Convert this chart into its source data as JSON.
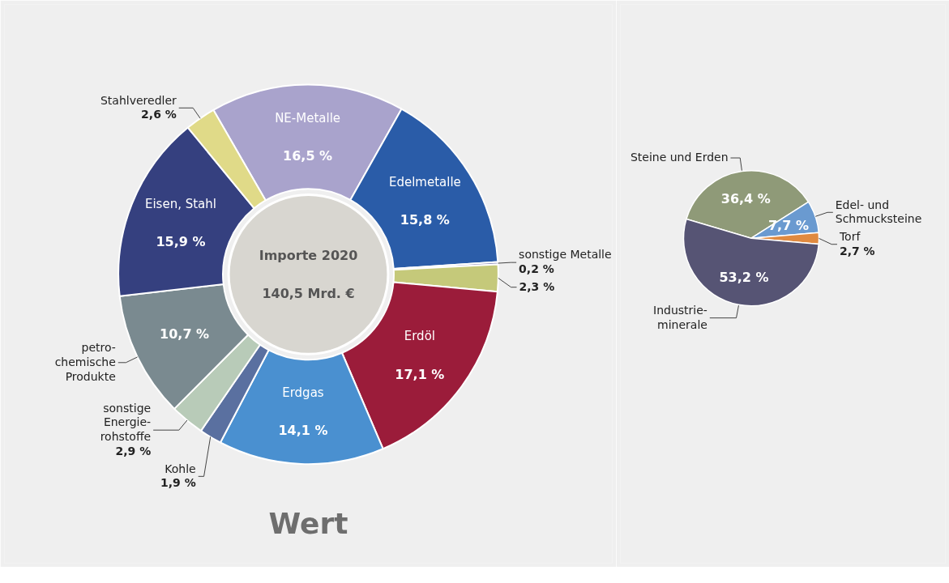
{
  "chart_data": [
    {
      "type": "donut",
      "title": "Wert",
      "annotations": [
        "Importe 2020",
        "140,5 Mrd. €"
      ],
      "categories": [
        "NE-Metalle",
        "Edelmetalle",
        "sonstige Metalle",
        null,
        "Erdöl",
        "Erdgas",
        "Kohle",
        "sonstige\nEnergie-\nrohstoffe",
        "petro-\nchemische\nProdukte",
        "Eisen, Stahl",
        "Stahlveredler"
      ],
      "values": [
        16.5,
        15.8,
        0.2,
        2.3,
        17.1,
        14.1,
        1.9,
        2.9,
        10.7,
        15.9,
        2.6
      ],
      "colors": [
        "#a9a3cc",
        "#2a5ca8",
        "#8a8ab8",
        "#c5c97a",
        "#9b1c3a",
        "#4a90d0",
        "#5a70a0",
        "#b8cbb8",
        "#7a8a90",
        "#35407f",
        "#e0da88"
      ],
      "value_labels": [
        "16,5 %",
        "15,8 %",
        "0,2 %",
        "2,3 %",
        "17,1 %",
        "14,1 %",
        "1,9 %",
        "2,9 %",
        "10,7 %",
        "15,9 %",
        "2,6 %"
      ]
    },
    {
      "type": "pie",
      "categories": [
        "Steine und Erden",
        "Edel- und\nSchmucksteine",
        "Torf",
        "Industrie-\nminerale"
      ],
      "values": [
        36.4,
        7.7,
        2.7,
        53.2
      ],
      "colors": [
        "#8f9a78",
        "#6a9ad0",
        "#e08a40",
        "#565474"
      ],
      "value_labels": [
        "36,4 %",
        "7,7 %",
        "2,7 %",
        "53,2 %"
      ]
    }
  ]
}
